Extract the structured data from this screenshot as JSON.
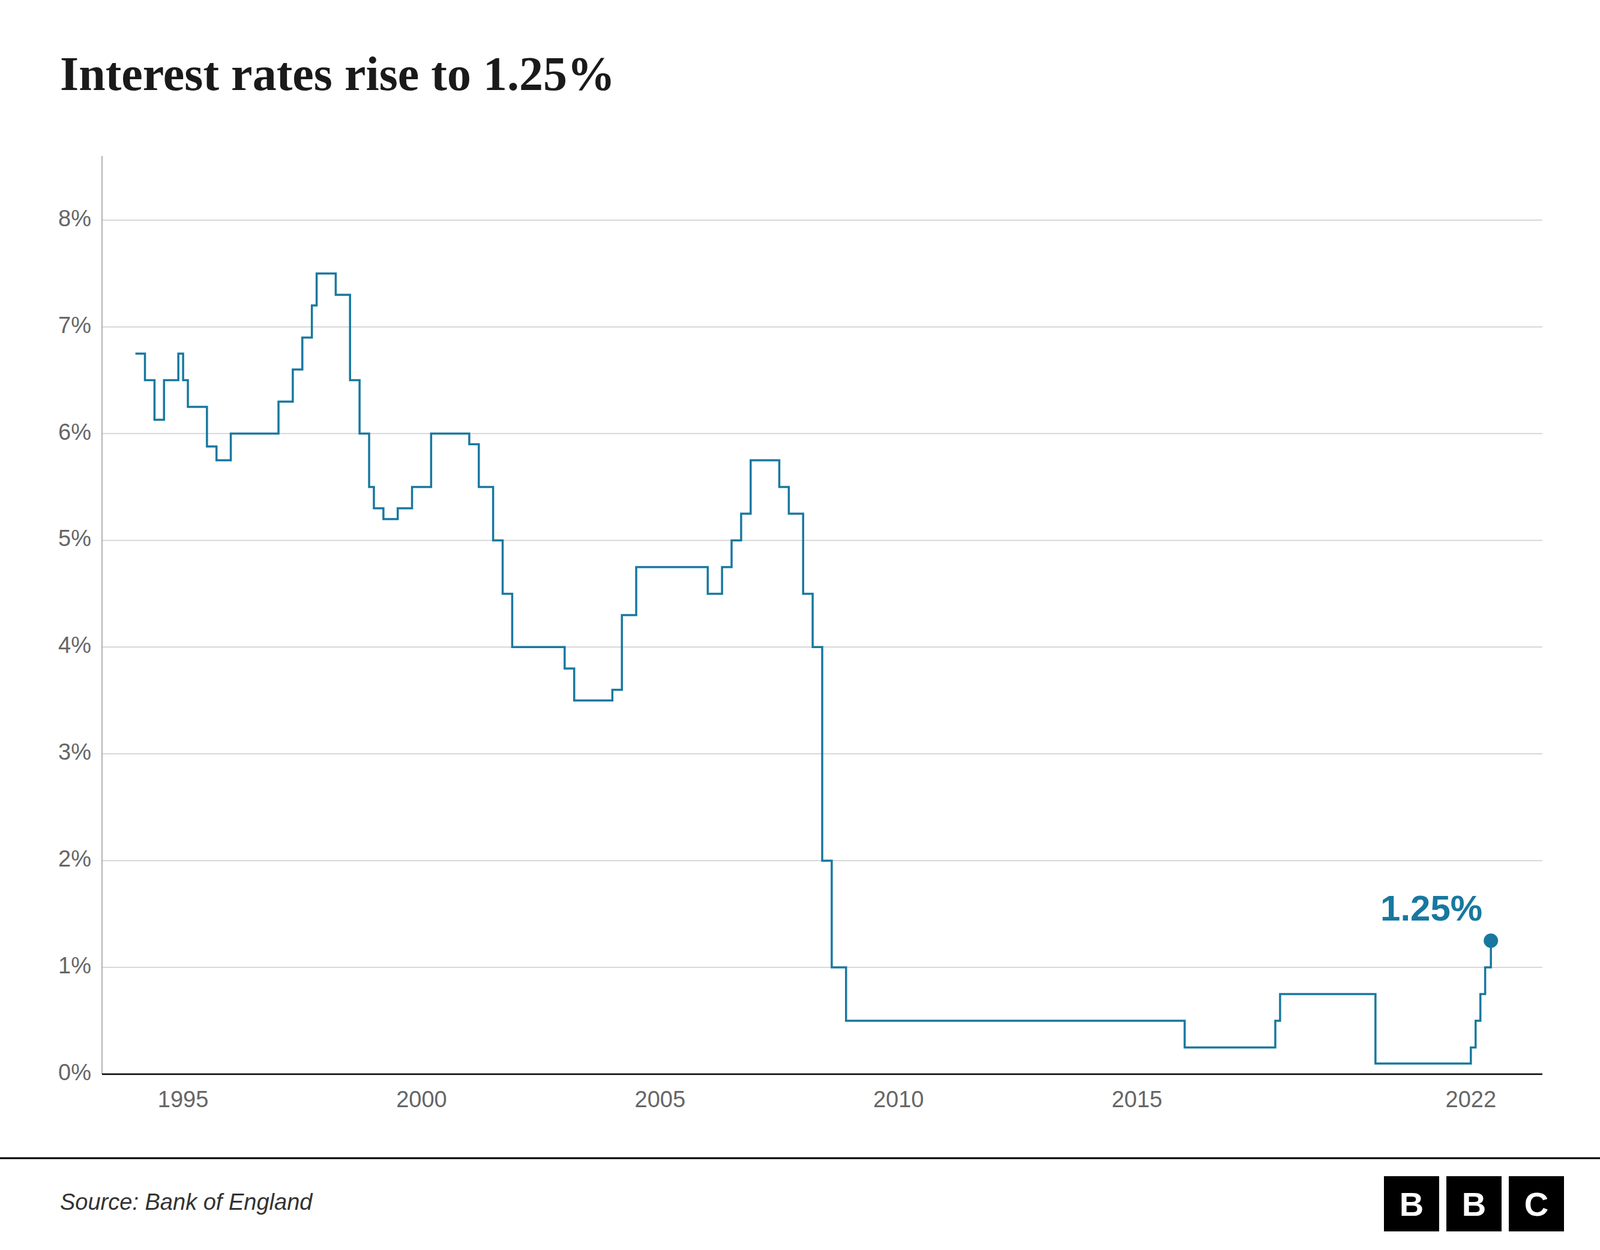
{
  "chart_data": {
    "type": "step",
    "title": "Interest rates rise to 1.25%",
    "source": "Source: Bank of England",
    "logo": "BBC",
    "color": "#1878a0",
    "grid": true,
    "xlim": [
      1993.3,
      2023.5
    ],
    "ylim": [
      0,
      0.086
    ],
    "xticks": [
      1995,
      2000,
      2005,
      2010,
      2015,
      2022
    ],
    "yticks": [
      {
        "value": 0.0,
        "label": "0%"
      },
      {
        "value": 0.01,
        "label": "1%"
      },
      {
        "value": 0.02,
        "label": "2%"
      },
      {
        "value": 0.03,
        "label": "3%"
      },
      {
        "value": 0.04,
        "label": "4%"
      },
      {
        "value": 0.05,
        "label": "5%"
      },
      {
        "value": 0.06,
        "label": "6%"
      },
      {
        "value": 0.07,
        "label": "7%"
      },
      {
        "value": 0.08,
        "label": "8%"
      }
    ],
    "x": [
      1994.0,
      1994.2,
      1994.4,
      1994.6,
      1994.9,
      1995.0,
      1995.1,
      1995.5,
      1995.7,
      1996.0,
      1996.1,
      1997.0,
      1997.3,
      1997.5,
      1997.7,
      1997.8,
      1998.0,
      1998.2,
      1998.5,
      1998.7,
      1998.9,
      1999.0,
      1999.2,
      1999.5,
      1999.8,
      2000.2,
      2000.5,
      2001.0,
      2001.2,
      2001.5,
      2001.7,
      2001.9,
      2002.0,
      2003.0,
      2003.2,
      2003.5,
      2003.8,
      2004.0,
      2004.2,
      2004.5,
      2004.7,
      2004.9,
      2005.0,
      2006.0,
      2006.3,
      2006.5,
      2006.7,
      2006.9,
      2007.0,
      2007.2,
      2007.4,
      2007.5,
      2007.7,
      2007.9,
      2008.0,
      2008.2,
      2008.4,
      2008.6,
      2008.9,
      2009.0,
      2009.2,
      2016.0,
      2017.0,
      2017.9,
      2018.0,
      2018.7,
      2019.0,
      2020.0,
      2020.2,
      2021.9,
      2022.0,
      2022.1,
      2022.2,
      2022.3,
      2022.42
    ],
    "values": [
      0.0675,
      0.065,
      0.0613,
      0.065,
      0.0675,
      0.065,
      0.0625,
      0.0588,
      0.0575,
      0.06,
      0.06,
      0.063,
      0.066,
      0.069,
      0.072,
      0.075,
      0.075,
      0.073,
      0.065,
      0.06,
      0.055,
      0.053,
      0.052,
      0.053,
      0.055,
      0.06,
      0.06,
      0.059,
      0.055,
      0.05,
      0.045,
      0.04,
      0.04,
      0.038,
      0.035,
      0.035,
      0.035,
      0.036,
      0.043,
      0.0475,
      0.0475,
      0.0475,
      0.0475,
      0.045,
      0.0475,
      0.05,
      0.0525,
      0.0575,
      0.0575,
      0.0575,
      0.0575,
      0.055,
      0.0525,
      0.0525,
      0.045,
      0.04,
      0.02,
      0.01,
      0.005,
      0.005,
      0.005,
      0.0025,
      0.0025,
      0.005,
      0.0075,
      0.0075,
      0.0075,
      0.001,
      0.001,
      0.001,
      0.0025,
      0.005,
      0.0075,
      0.01,
      0.0125
    ],
    "annotations": [
      {
        "text": "1.25%",
        "x": 2022.42,
        "y": 0.0125
      }
    ]
  }
}
